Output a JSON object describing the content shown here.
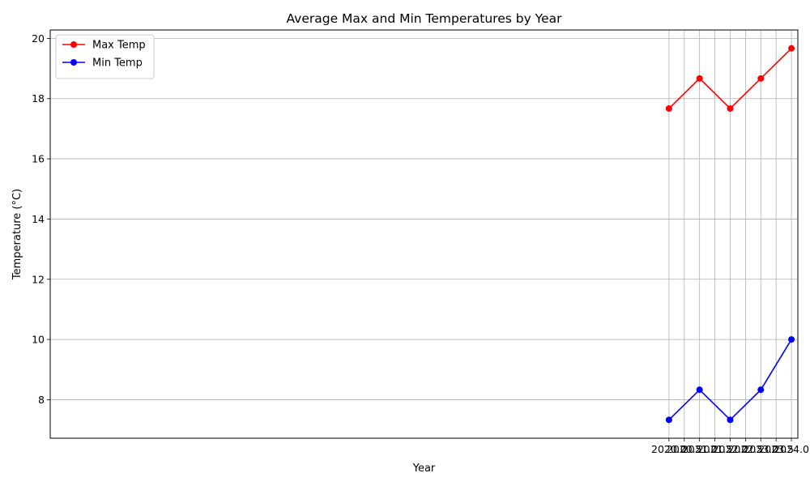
{
  "chart_data": {
    "type": "line",
    "title": "Average Max and Min Temperatures by Year",
    "xlabel": "Year",
    "ylabel": "Temperature (°C)",
    "x": [
      2020,
      2021,
      2022,
      2023,
      2024
    ],
    "series": [
      {
        "name": "Max Temp",
        "color": "#ff0000",
        "marker": "circle",
        "values": [
          17.67,
          18.67,
          17.67,
          18.67,
          19.67
        ]
      },
      {
        "name": "Min Temp",
        "color": "#0000ff",
        "marker": "circle",
        "values": [
          7.33,
          8.33,
          7.33,
          8.33,
          10.0
        ]
      }
    ],
    "xlim": [
      1999.79,
      2024.21
    ],
    "ylim": [
      6.72,
      20.28
    ],
    "x_ticks": [
      2020.0,
      2020.5,
      2021.0,
      2021.5,
      2022.0,
      2022.5,
      2023.0,
      2023.5,
      2024.0
    ],
    "x_tick_labels": [
      "2020.0",
      "2020.5",
      "2021.0",
      "2021.5",
      "2022.0",
      "2022.5",
      "2023.0",
      "2023.5",
      "2024.0"
    ],
    "y_ticks": [
      8,
      10,
      12,
      14,
      16,
      18,
      20
    ],
    "y_tick_labels": [
      "8",
      "10",
      "12",
      "14",
      "16",
      "18",
      "20"
    ],
    "grid": true,
    "legend_position": "upper-left",
    "grid_color": "#b0b0b0"
  }
}
